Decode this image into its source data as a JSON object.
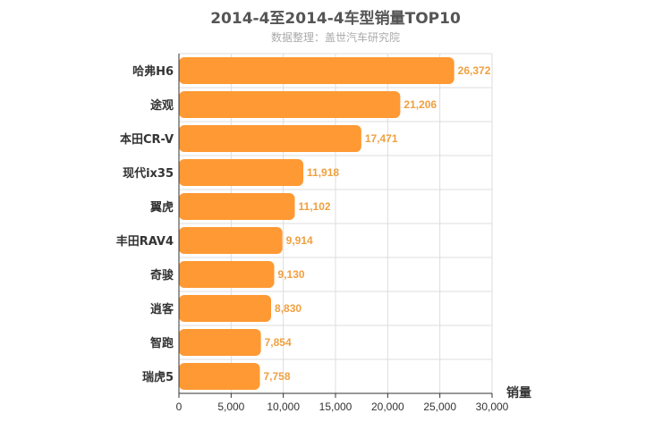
{
  "chart_data": {
    "type": "bar",
    "orientation": "horizontal",
    "title": "2014-4至2014-4车型销量TOP10",
    "subtitle": "数据整理：盖世汽车研究院",
    "categories": [
      "哈弗H6",
      "途观",
      "本田CR-V",
      "现代ix35",
      "翼虎",
      "丰田RAV4",
      "奇骏",
      "逍客",
      "智跑",
      "瑞虎5"
    ],
    "values": [
      26372,
      21206,
      17471,
      11918,
      11102,
      9914,
      9130,
      8830,
      7854,
      7758
    ],
    "value_labels": [
      "26,372",
      "21,206",
      "17,471",
      "11,918",
      "11,102",
      "9,914",
      "9,130",
      "8,830",
      "7,854",
      "7,758"
    ],
    "xlabel": "销量",
    "ylabel": "",
    "xlim": [
      0,
      30000
    ],
    "xticks": [
      0,
      5000,
      10000,
      15000,
      20000,
      25000,
      30000
    ],
    "xtick_labels": [
      "0",
      "5,000",
      "10,000",
      "15,000",
      "20,000",
      "25,000",
      "30,000"
    ],
    "grid": true,
    "legend": "none",
    "bar_color": "#ff9933",
    "label_color": "#f0a040"
  }
}
